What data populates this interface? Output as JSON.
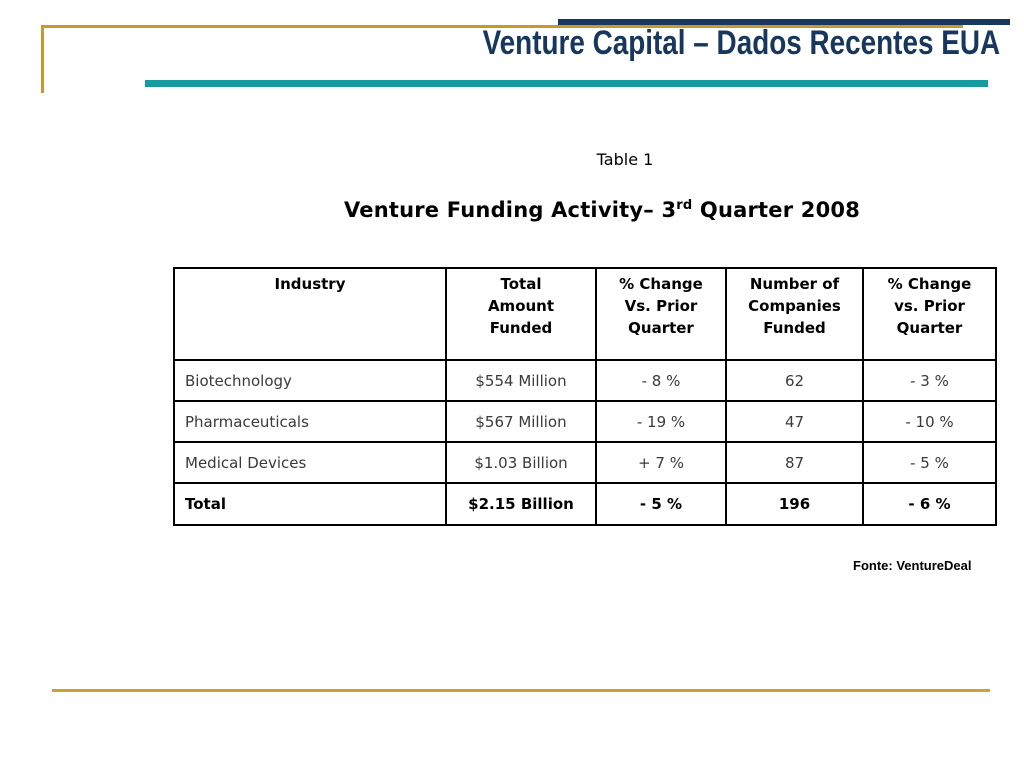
{
  "header": {
    "title": "Venture Capital – Dados Recentes EUA"
  },
  "content": {
    "table_label": "Table 1",
    "table_title": {
      "prefix": "Venture Funding Activity– 3",
      "superscript": "rd",
      "suffix": " Quarter 2008"
    },
    "source_note": "Fonte: VentureDeal"
  },
  "table": {
    "headers": [
      "Industry",
      "Total\nAmount\nFunded",
      "% Change\nVs. Prior\nQuarter",
      "Number of\nCompanies\nFunded",
      "% Change\nvs. Prior\nQuarter"
    ],
    "rows": [
      {
        "cells": [
          "Biotechnology",
          "$554 Million",
          "- 8 %",
          "62",
          "- 3 %"
        ],
        "is_total": false
      },
      {
        "cells": [
          "Pharmaceuticals",
          "$567 Million",
          "- 19 %",
          "47",
          "- 10 %"
        ],
        "is_total": false
      },
      {
        "cells": [
          "Medical Devices",
          "$1.03 Billion",
          "+ 7 %",
          "87",
          "- 5 %"
        ],
        "is_total": false
      },
      {
        "cells": [
          "Total",
          "$2.15 Billion",
          "- 5 %",
          "196",
          "- 6 %"
        ],
        "is_total": true
      }
    ]
  },
  "colors": {
    "title_navy": "#17375E",
    "teal_accent": "#189B9E",
    "gold_accent": "#C9992E",
    "body_text": "#3A3A3A"
  }
}
